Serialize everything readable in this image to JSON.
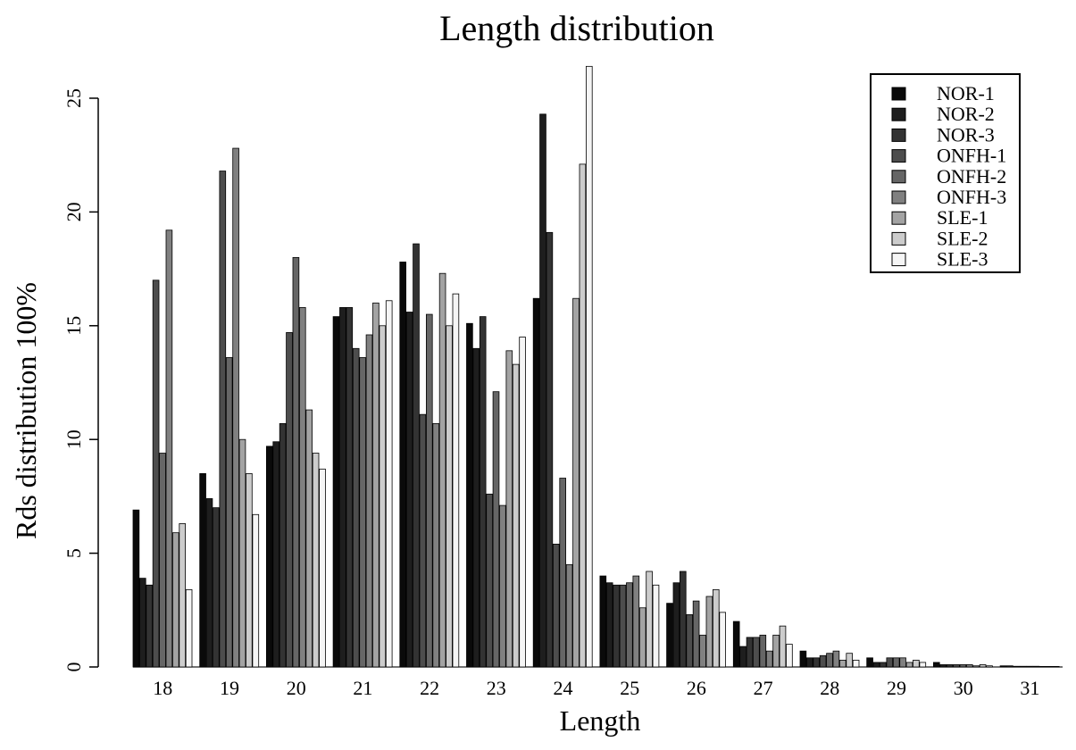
{
  "chart_data": {
    "type": "bar",
    "title": "Length distribution",
    "xlabel": "Length",
    "ylabel": "Rds distribution 100%",
    "ylim": [
      0,
      25
    ],
    "yticks": [
      "0",
      "5",
      "10",
      "15",
      "20",
      "25"
    ],
    "categories": [
      "18",
      "19",
      "20",
      "21",
      "22",
      "23",
      "24",
      "25",
      "26",
      "27",
      "28",
      "29",
      "30",
      "31"
    ],
    "grid": false,
    "legend_position": "top-right",
    "series": [
      {
        "name": "NOR-1",
        "color": "#0a0a0a",
        "values": [
          6.9,
          8.5,
          9.7,
          15.4,
          17.8,
          15.1,
          16.2,
          4.0,
          2.8,
          2.0,
          0.7,
          0.4,
          0.2,
          0.05
        ]
      },
      {
        "name": "NOR-2",
        "color": "#1e1e1e",
        "values": [
          3.9,
          7.4,
          9.9,
          15.8,
          15.6,
          14.0,
          24.3,
          3.7,
          3.7,
          0.9,
          0.4,
          0.2,
          0.1,
          0.05
        ]
      },
      {
        "name": "NOR-3",
        "color": "#333333",
        "values": [
          3.6,
          7.0,
          10.7,
          15.8,
          18.6,
          15.4,
          19.1,
          3.6,
          4.2,
          1.3,
          0.4,
          0.2,
          0.1,
          0.03
        ]
      },
      {
        "name": "ONFH-1",
        "color": "#4d4d4d",
        "values": [
          17.0,
          21.8,
          14.7,
          14.0,
          11.1,
          7.6,
          5.4,
          3.6,
          2.3,
          1.3,
          0.5,
          0.4,
          0.1,
          0.03
        ]
      },
      {
        "name": "ONFH-2",
        "color": "#666666",
        "values": [
          9.4,
          13.6,
          18.0,
          13.6,
          15.5,
          12.1,
          8.3,
          3.7,
          2.9,
          1.4,
          0.6,
          0.4,
          0.1,
          0.03
        ]
      },
      {
        "name": "ONFH-3",
        "color": "#808080",
        "values": [
          19.2,
          22.8,
          15.8,
          14.6,
          10.7,
          7.1,
          4.5,
          4.0,
          1.4,
          0.7,
          0.7,
          0.4,
          0.1,
          0.03
        ]
      },
      {
        "name": "SLE-1",
        "color": "#a3a3a3",
        "values": [
          5.9,
          10.0,
          11.3,
          16.0,
          17.3,
          13.9,
          16.2,
          2.6,
          3.1,
          1.4,
          0.3,
          0.2,
          0.05,
          0.02
        ]
      },
      {
        "name": "SLE-2",
        "color": "#cccccc",
        "values": [
          6.3,
          8.5,
          9.4,
          15.0,
          15.0,
          13.3,
          22.1,
          4.2,
          3.4,
          1.8,
          0.6,
          0.3,
          0.1,
          0.02
        ]
      },
      {
        "name": "SLE-3",
        "color": "#f5f5f5",
        "values": [
          3.4,
          6.7,
          8.7,
          16.1,
          16.4,
          14.5,
          26.4,
          3.6,
          2.4,
          1.0,
          0.3,
          0.2,
          0.05,
          0.02
        ]
      }
    ]
  }
}
